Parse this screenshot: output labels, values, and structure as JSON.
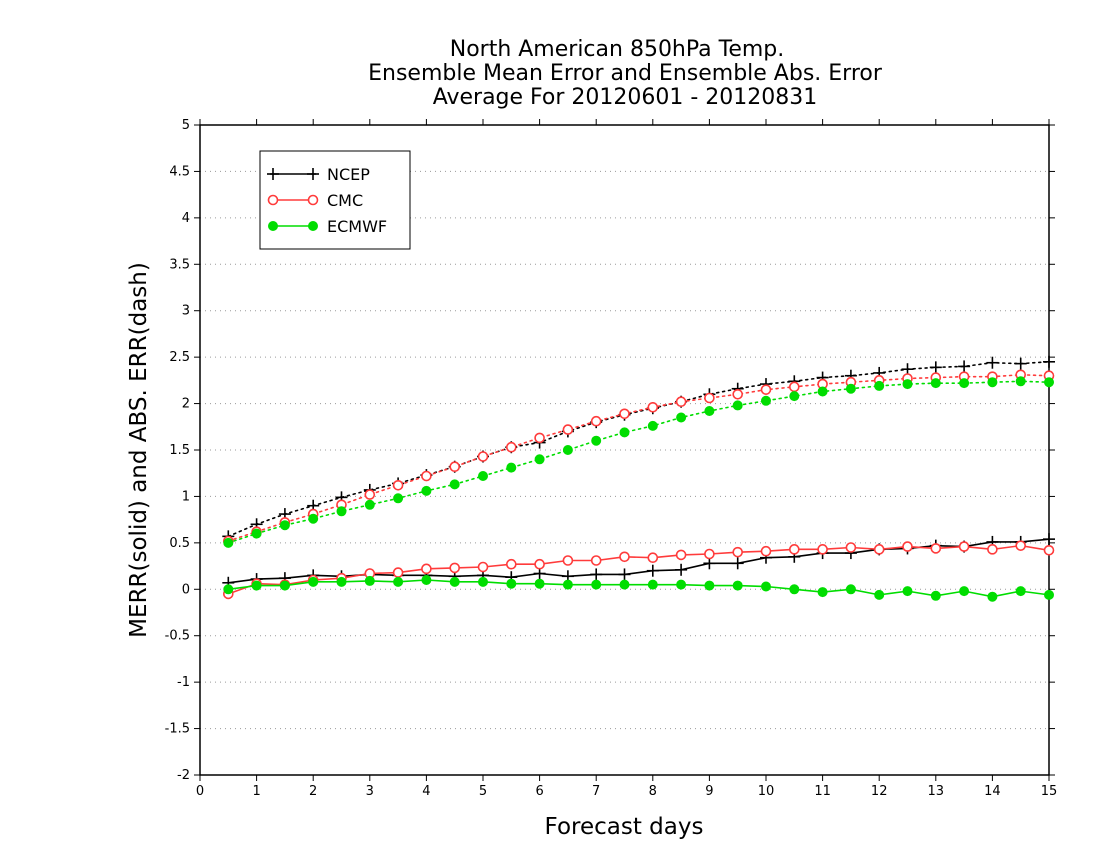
{
  "chart_data": {
    "type": "line",
    "title": [
      "North American 850hPa Temp.",
      "Ensemble Mean Error and Ensemble Abs. Error",
      "Average For 20120601 - 20120831"
    ],
    "xlabel": "Forecast days",
    "ylabel": "MERR(solid) and ABS. ERR(dash)",
    "xlim": [
      0,
      15
    ],
    "ylim": [
      -2,
      5
    ],
    "x_ticks": [
      "0",
      "1",
      "2",
      "3",
      "4",
      "5",
      "6",
      "7",
      "8",
      "9",
      "10",
      "11",
      "12",
      "13",
      "14",
      "15"
    ],
    "y_ticks": [
      "-2",
      "-1.5",
      "-1",
      "-0.5",
      "0",
      "0.5",
      "1",
      "1.5",
      "2",
      "2.5",
      "3",
      "3.5",
      "4",
      "4.5",
      "5"
    ],
    "grid": "horizontal dotted",
    "legend_placement": "top-left",
    "x": [
      0.5,
      1,
      1.5,
      2,
      2.5,
      3,
      3.5,
      4,
      4.5,
      5,
      5.5,
      6,
      6.5,
      7,
      7.5,
      8,
      8.5,
      9,
      9.5,
      10,
      10.5,
      11,
      11.5,
      12,
      12.5,
      13,
      13.5,
      14,
      14.5,
      15
    ],
    "series": [
      {
        "name": "NCEP",
        "color": "#000000",
        "marker": "plus",
        "merr": [
          0.07,
          0.11,
          0.12,
          0.15,
          0.14,
          0.16,
          0.15,
          0.15,
          0.14,
          0.15,
          0.13,
          0.17,
          0.14,
          0.16,
          0.16,
          0.2,
          0.21,
          0.28,
          0.28,
          0.34,
          0.35,
          0.39,
          0.39,
          0.43,
          0.44,
          0.47,
          0.46,
          0.51,
          0.51,
          0.54
        ],
        "abs_err": [
          0.57,
          0.7,
          0.81,
          0.9,
          0.99,
          1.07,
          1.14,
          1.23,
          1.32,
          1.43,
          1.53,
          1.58,
          1.7,
          1.8,
          1.88,
          1.95,
          2.02,
          2.1,
          2.16,
          2.21,
          2.24,
          2.28,
          2.3,
          2.33,
          2.37,
          2.39,
          2.4,
          2.44,
          2.43,
          2.45
        ]
      },
      {
        "name": "CMC",
        "color": "#ff3b3b",
        "marker": "open-circle",
        "merr": [
          -0.05,
          0.06,
          0.05,
          0.1,
          0.12,
          0.17,
          0.18,
          0.22,
          0.23,
          0.24,
          0.27,
          0.27,
          0.31,
          0.31,
          0.35,
          0.34,
          0.37,
          0.38,
          0.4,
          0.41,
          0.43,
          0.43,
          0.45,
          0.43,
          0.46,
          0.44,
          0.46,
          0.43,
          0.47,
          0.42
        ],
        "abs_err": [
          0.52,
          0.62,
          0.72,
          0.81,
          0.91,
          1.02,
          1.12,
          1.22,
          1.32,
          1.43,
          1.53,
          1.63,
          1.72,
          1.81,
          1.89,
          1.96,
          2.02,
          2.06,
          2.1,
          2.15,
          2.18,
          2.21,
          2.23,
          2.25,
          2.27,
          2.28,
          2.29,
          2.29,
          2.31,
          2.3
        ]
      },
      {
        "name": "ECMWF",
        "color": "#00dd00",
        "marker": "filled-circle",
        "merr": [
          0.0,
          0.04,
          0.04,
          0.08,
          0.08,
          0.09,
          0.08,
          0.1,
          0.08,
          0.08,
          0.06,
          0.06,
          0.05,
          0.05,
          0.05,
          0.05,
          0.05,
          0.04,
          0.04,
          0.03,
          0.0,
          -0.03,
          0.0,
          -0.06,
          -0.02,
          -0.07,
          -0.02,
          -0.08,
          -0.02,
          -0.06
        ],
        "abs_err": [
          0.5,
          0.6,
          0.69,
          0.76,
          0.84,
          0.91,
          0.98,
          1.06,
          1.13,
          1.22,
          1.31,
          1.4,
          1.5,
          1.6,
          1.69,
          1.76,
          1.85,
          1.92,
          1.98,
          2.03,
          2.08,
          2.13,
          2.16,
          2.19,
          2.21,
          2.22,
          2.22,
          2.23,
          2.24,
          2.23
        ]
      }
    ]
  }
}
